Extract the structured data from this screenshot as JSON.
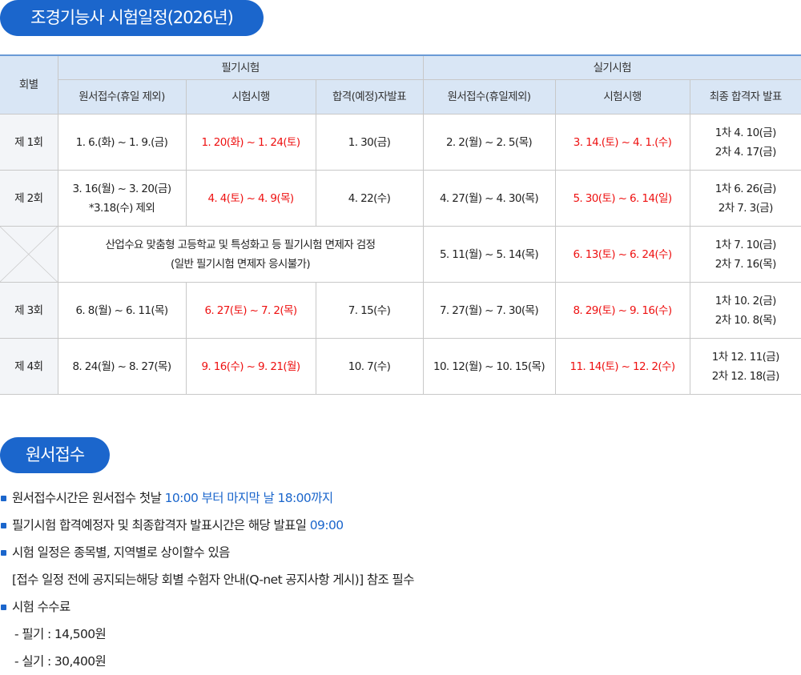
{
  "title": "조경기능사 시험일정(2026년)",
  "table": {
    "header": {
      "round": "회별",
      "written_group": "필기시험",
      "practical_group": "실기시험",
      "columns": [
        "원서접수(휴일 제외)",
        "시험시행",
        "합격(예정)자발표",
        "원서접수(휴일제외)",
        "시험시행",
        "최종 합격자 발표"
      ]
    },
    "rows": [
      {
        "round": "제 1회",
        "cells": [
          {
            "lines": [
              "1. 6.(화) ~ 1. 9.(금)"
            ],
            "red": false
          },
          {
            "lines": [
              "1. 20(화) ~ 1. 24(토)"
            ],
            "red": true
          },
          {
            "lines": [
              "1. 30(금)"
            ],
            "red": false
          },
          {
            "lines": [
              "2. 2(월) ~ 2. 5(목)"
            ],
            "red": false
          },
          {
            "lines": [
              "3. 14.(토) ~ 4. 1.(수)"
            ],
            "red": true
          },
          {
            "lines": [
              "1차 4. 10(금)",
              "2차 4. 17(금)"
            ],
            "red": false
          }
        ]
      },
      {
        "round": "제 2회",
        "cells": [
          {
            "lines": [
              "3. 16(월) ~ 3. 20(금)",
              "*3.18(수) 제외"
            ],
            "red": false
          },
          {
            "lines": [
              "4. 4(토) ~ 4. 9(목)"
            ],
            "red": true
          },
          {
            "lines": [
              "4. 22(수)"
            ],
            "red": false
          },
          {
            "lines": [
              "4. 27(월) ~ 4. 30(목)"
            ],
            "red": false
          },
          {
            "lines": [
              "5. 30(토) ~ 6. 14(일)"
            ],
            "red": true
          },
          {
            "lines": [
              "1차 6. 26(금)",
              "2차 7. 3(금)"
            ],
            "red": false
          }
        ]
      },
      {
        "round": "",
        "merged_written": [
          "산업수요 맞춤형 고등학교 및 특성화고 등 필기시험 면제자 검정",
          "(일반 필기시험 면제자 응시불가)"
        ],
        "cells": [
          {
            "lines": [
              "5. 11(월) ~ 5. 14(목)"
            ],
            "red": false
          },
          {
            "lines": [
              "6. 13(토) ~ 6. 24(수)"
            ],
            "red": true
          },
          {
            "lines": [
              "1차 7. 10(금)",
              "2차 7. 16(목)"
            ],
            "red": false
          }
        ]
      },
      {
        "round": "제 3회",
        "cells": [
          {
            "lines": [
              "6. 8(월) ~ 6. 11(목)"
            ],
            "red": false
          },
          {
            "lines": [
              "6. 27(토) ~ 7. 2(목)"
            ],
            "red": true
          },
          {
            "lines": [
              "7. 15(수)"
            ],
            "red": false
          },
          {
            "lines": [
              "7. 27(월) ~ 7. 30(목)"
            ],
            "red": false
          },
          {
            "lines": [
              "8. 29(토) ~ 9. 16(수)"
            ],
            "red": true
          },
          {
            "lines": [
              "1차 10. 2(금)",
              "2차 10. 8(목)"
            ],
            "red": false
          }
        ]
      },
      {
        "round": "제 4회",
        "cells": [
          {
            "lines": [
              "8. 24(월) ~ 8. 27(목)"
            ],
            "red": false
          },
          {
            "lines": [
              "9. 16(수) ~ 9. 21(월)"
            ],
            "red": true
          },
          {
            "lines": [
              "10. 7(수)"
            ],
            "red": false
          },
          {
            "lines": [
              "10. 12(월) ~ 10. 15(목)"
            ],
            "red": false
          },
          {
            "lines": [
              "11. 14(토) ~ 12. 2(수)"
            ],
            "red": true
          },
          {
            "lines": [
              "1차 12. 11(금)",
              "2차 12. 18(금)"
            ],
            "red": false
          }
        ]
      }
    ]
  },
  "apply_section": {
    "title": "원서접수",
    "items": [
      {
        "bullet": true,
        "parts": [
          {
            "text": "원서접수시간은 원서접수 첫날 ",
            "blue": false
          },
          {
            "text": "10:00 부터 마지막 날 18:00까지",
            "blue": true
          }
        ]
      },
      {
        "bullet": true,
        "parts": [
          {
            "text": "필기시험 합격예정자 및 최종합격자 발표시간은 해당 발표일 ",
            "blue": false
          },
          {
            "text": "09:00",
            "blue": true
          }
        ]
      },
      {
        "bullet": true,
        "parts": [
          {
            "text": "시험 일정은 종목별, 지역별로 상이할수 있음",
            "blue": false
          }
        ]
      },
      {
        "bullet": false,
        "parts": [
          {
            "text": "[접수 일정 전에 공지되는해당 회별 수험자 안내(Q-net 공지사항 게시)] 참조 필수",
            "blue": false
          }
        ]
      },
      {
        "bullet": true,
        "parts": [
          {
            "text": "시험 수수료",
            "blue": false
          }
        ]
      },
      {
        "bullet": false,
        "sub": true,
        "parts": [
          {
            "text": "- 필기 : 14,500원",
            "blue": false
          }
        ]
      },
      {
        "bullet": false,
        "sub": true,
        "parts": [
          {
            "text": "- 실기 : 30,400원",
            "blue": false
          }
        ]
      }
    ]
  },
  "colors": {
    "accent": "#1b66cc",
    "header_bg": "#d9e6f5",
    "highlight_red": "#ee1111"
  }
}
